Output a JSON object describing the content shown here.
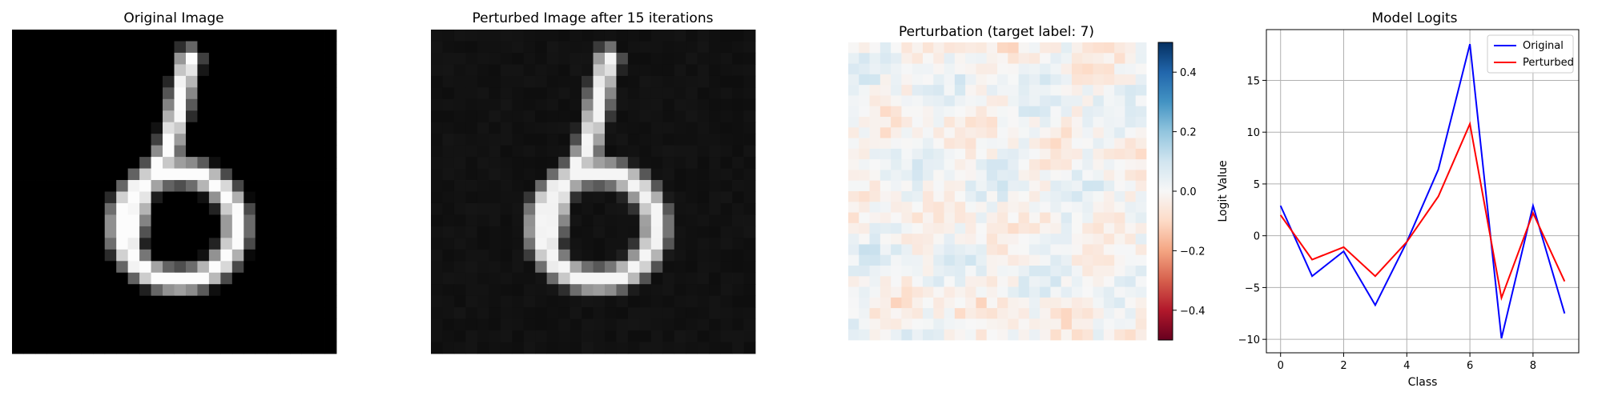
{
  "chart_data": [
    {
      "type": "heatmap",
      "colormap": "gray",
      "title": "Original Image",
      "grid_size": 28,
      "axes_visible": false
    },
    {
      "type": "heatmap",
      "colormap": "gray",
      "title": "Perturbed Image after 15 iterations",
      "grid_size": 28,
      "axes_visible": false
    },
    {
      "type": "heatmap",
      "colormap": "RdBu",
      "title": "Perturbation (target label: 7)",
      "grid_size": 28,
      "colorbar": {
        "vmin": -0.5,
        "vmax": 0.5,
        "ticks": [
          0.4,
          0.2,
          0.0,
          -0.2,
          -0.4
        ],
        "tick_labels": [
          "0.4",
          "0.2",
          "0.0",
          "−0.2",
          "−0.4"
        ]
      }
    },
    {
      "type": "line",
      "title": "Model Logits",
      "xlabel": "Class",
      "ylabel": "Logit Value",
      "x": [
        0,
        1,
        2,
        3,
        4,
        5,
        6,
        7,
        8,
        9
      ],
      "xlim": [
        -0.45,
        9.45
      ],
      "ylim": [
        -11.3,
        19.9
      ],
      "xticks": [
        0,
        2,
        4,
        6,
        8
      ],
      "xtick_labels": [
        "0",
        "2",
        "4",
        "6",
        "8"
      ],
      "yticks": [
        -10,
        -5,
        0,
        5,
        10,
        15
      ],
      "ytick_labels": [
        "−10",
        "−5",
        "0",
        "5",
        "10",
        "15"
      ],
      "grid": true,
      "legend_position": "top-right",
      "series": [
        {
          "name": "Original",
          "color": "#0000ff",
          "values": [
            2.9,
            -3.9,
            -1.5,
            -6.7,
            -0.6,
            6.4,
            18.5,
            -9.9,
            2.9,
            -7.5
          ]
        },
        {
          "name": "Perturbed",
          "color": "#ff0000",
          "values": [
            2.0,
            -2.3,
            -1.1,
            -3.9,
            -0.6,
            3.8,
            10.8,
            -6.0,
            2.2,
            -4.4
          ]
        }
      ]
    }
  ]
}
